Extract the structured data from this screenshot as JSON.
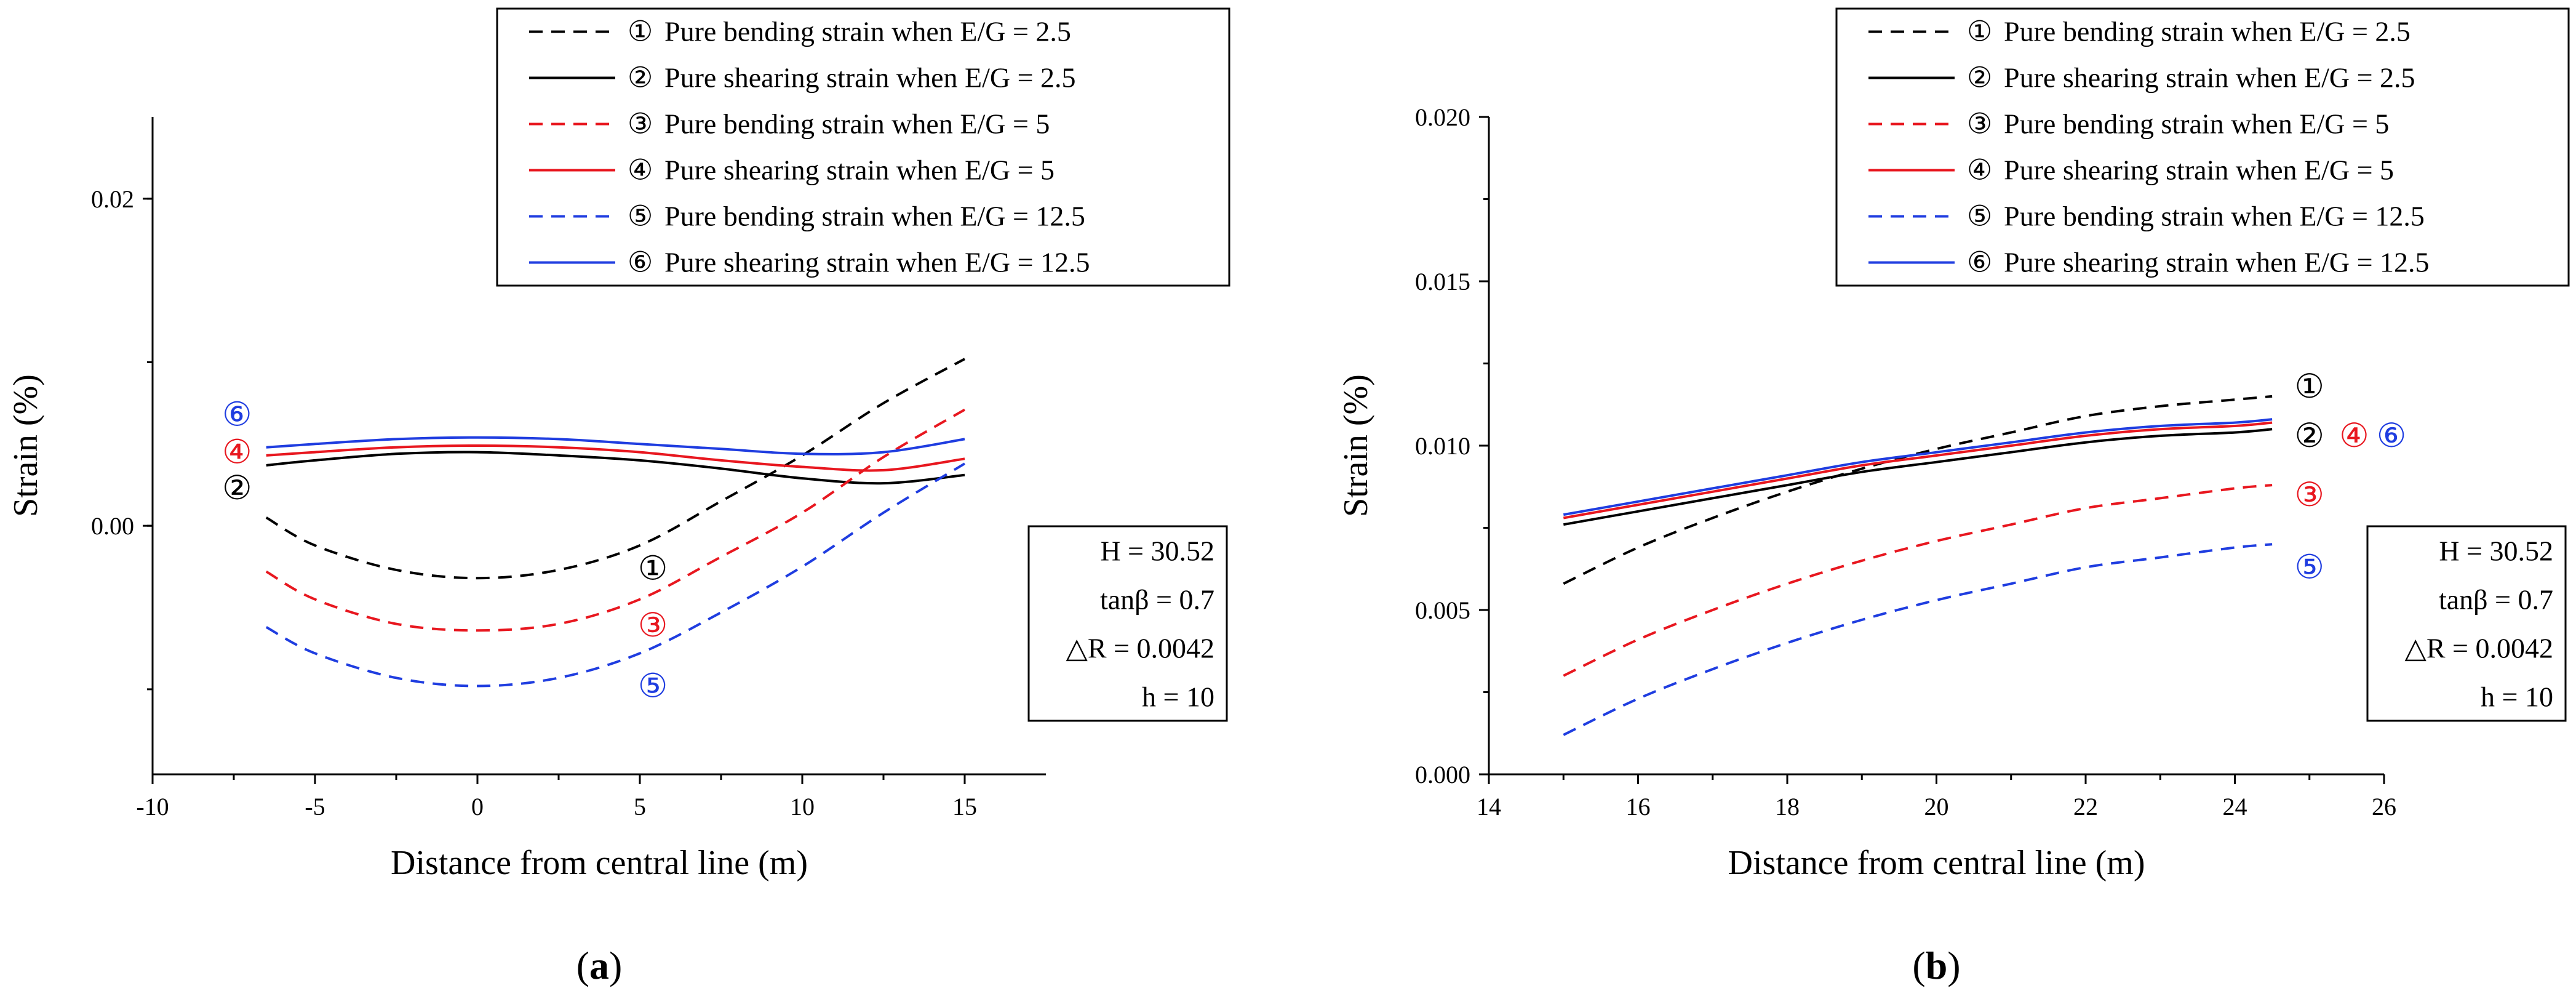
{
  "panels": [
    {
      "id": "a",
      "caption_letter": "a",
      "chart_data": {
        "type": "line",
        "xlabel": "Distance from central line (m)",
        "ylabel": "Strain (%)",
        "xlim": [
          -10,
          17.5
        ],
        "ylim": [
          -0.0152,
          0.025
        ],
        "xticks": [
          -10,
          -5,
          0,
          5,
          10,
          15
        ],
        "xtick_labels": [
          "-10",
          "-5",
          "0",
          "5",
          "10",
          "15"
        ],
        "yticks": [
          0.0,
          0.02
        ],
        "ytick_labels": [
          "0.00",
          "0.02"
        ],
        "series": [
          {
            "name": "Pure bending strain when E/G = 2.5",
            "marker": "①",
            "color": "#000000",
            "dash": true,
            "x": [
              -6.5,
              -5,
              -2.5,
              0,
              2.5,
              5,
              7.5,
              10,
              12.5,
              15
            ],
            "y": [
              0.0005,
              -0.0012,
              -0.0027,
              -0.0032,
              -0.0027,
              -0.0012,
              0.0015,
              0.0043,
              0.0075,
              0.0102
            ]
          },
          {
            "name": "Pure shearing strain when E/G = 2.5",
            "marker": "②",
            "color": "#000000",
            "dash": false,
            "x": [
              -6.5,
              -5,
              -2.5,
              0,
              2.5,
              5,
              7.5,
              10,
              12.5,
              15
            ],
            "y": [
              0.0037,
              0.004,
              0.0044,
              0.0045,
              0.0043,
              0.004,
              0.0035,
              0.0029,
              0.0026,
              0.0031
            ]
          },
          {
            "name": "Pure bending strain when E/G = 5",
            "marker": "③",
            "color": "#e8171f",
            "dash": true,
            "x": [
              -6.5,
              -5,
              -2.5,
              0,
              2.5,
              5,
              7.5,
              10,
              12.5,
              15
            ],
            "y": [
              -0.0028,
              -0.0045,
              -0.006,
              -0.0064,
              -0.006,
              -0.0045,
              -0.0019,
              0.0008,
              0.0042,
              0.0071
            ]
          },
          {
            "name": "Pure shearing strain when E/G = 5",
            "marker": "④",
            "color": "#e8171f",
            "dash": false,
            "x": [
              -6.5,
              -5,
              -2.5,
              0,
              2.5,
              5,
              7.5,
              10,
              12.5,
              15
            ],
            "y": [
              0.0043,
              0.0045,
              0.0048,
              0.0049,
              0.0048,
              0.0045,
              0.004,
              0.0036,
              0.0034,
              0.0041
            ]
          },
          {
            "name": "Pure bending strain when E/G = 12.5",
            "marker": "⑤",
            "color": "#1f3de0",
            "dash": true,
            "x": [
              -6.5,
              -5,
              -2.5,
              0,
              2.5,
              5,
              7.5,
              10,
              12.5,
              15
            ],
            "y": [
              -0.0062,
              -0.0078,
              -0.0093,
              -0.0098,
              -0.0093,
              -0.0078,
              -0.0053,
              -0.0025,
              0.0008,
              0.0038
            ]
          },
          {
            "name": "Pure shearing strain when E/G = 12.5",
            "marker": "⑥",
            "color": "#1f3de0",
            "dash": false,
            "x": [
              -6.5,
              -5,
              -2.5,
              0,
              2.5,
              5,
              7.5,
              10,
              12.5,
              15
            ],
            "y": [
              0.0048,
              0.005,
              0.0053,
              0.0054,
              0.0053,
              0.005,
              0.0047,
              0.0044,
              0.0045,
              0.0053
            ]
          }
        ],
        "annotations": [
          {
            "text": "①",
            "color": "#000000",
            "x": 5.4,
            "y": -0.0026
          },
          {
            "text": "②",
            "color": "#000000",
            "x": -7.4,
            "y": 0.0023
          },
          {
            "text": "③",
            "color": "#e8171f",
            "x": 5.4,
            "y": -0.0061
          },
          {
            "text": "④",
            "color": "#e8171f",
            "x": -7.4,
            "y": 0.0045
          },
          {
            "text": "⑤",
            "color": "#1f3de0",
            "x": 5.4,
            "y": -0.0098
          },
          {
            "text": "⑥",
            "color": "#1f3de0",
            "x": -7.4,
            "y": 0.0068
          }
        ]
      },
      "params": [
        "H = 30.52",
        "tanβ = 0.7",
        "△R = 0.0042",
        "h = 10"
      ]
    },
    {
      "id": "b",
      "caption_letter": "b",
      "chart_data": {
        "type": "line",
        "xlabel": "Distance from central line (m)",
        "ylabel": "Strain (%)",
        "xlim": [
          14,
          26
        ],
        "ylim": [
          0.0,
          0.02
        ],
        "xticks": [
          14,
          16,
          18,
          20,
          22,
          24,
          26
        ],
        "xtick_labels": [
          "14",
          "16",
          "18",
          "20",
          "22",
          "24",
          "26"
        ],
        "yticks": [
          0.0,
          0.005,
          0.01,
          0.015,
          0.02
        ],
        "ytick_labels": [
          "0.000",
          "0.005",
          "0.010",
          "0.015",
          "0.020"
        ],
        "series": [
          {
            "name": "Pure bending strain when E/G = 2.5",
            "marker": "①",
            "color": "#000000",
            "dash": true,
            "x": [
              15,
              16,
              17,
              18,
              19,
              20,
              21,
              22,
              23,
              24,
              24.5
            ],
            "y": [
              0.0058,
              0.0069,
              0.0078,
              0.0086,
              0.0093,
              0.0099,
              0.0104,
              0.0109,
              0.0112,
              0.0114,
              0.0115
            ]
          },
          {
            "name": "Pure shearing strain when E/G = 2.5",
            "marker": "②",
            "color": "#000000",
            "dash": false,
            "x": [
              15,
              16,
              17,
              18,
              19,
              20,
              21,
              22,
              23,
              24,
              24.5
            ],
            "y": [
              0.0076,
              0.008,
              0.0084,
              0.0088,
              0.0092,
              0.0095,
              0.0098,
              0.0101,
              0.0103,
              0.0104,
              0.0105
            ]
          },
          {
            "name": "Pure bending strain when E/G = 5",
            "marker": "③",
            "color": "#e8171f",
            "dash": true,
            "x": [
              15,
              16,
              17,
              18,
              19,
              20,
              21,
              22,
              23,
              24,
              24.5
            ],
            "y": [
              0.003,
              0.0041,
              0.005,
              0.0058,
              0.0065,
              0.0071,
              0.0076,
              0.0081,
              0.0084,
              0.0087,
              0.0088
            ]
          },
          {
            "name": "Pure shearing strain when E/G = 5",
            "marker": "④",
            "color": "#e8171f",
            "dash": false,
            "x": [
              15,
              16,
              17,
              18,
              19,
              20,
              21,
              22,
              23,
              24,
              24.5
            ],
            "y": [
              0.0078,
              0.0082,
              0.0086,
              0.009,
              0.0094,
              0.0097,
              0.01,
              0.0103,
              0.0105,
              0.0106,
              0.0107
            ]
          },
          {
            "name": "Pure bending strain when E/G = 12.5",
            "marker": "⑤",
            "color": "#1f3de0",
            "dash": true,
            "x": [
              15,
              16,
              17,
              18,
              19,
              20,
              21,
              22,
              23,
              24,
              24.5
            ],
            "y": [
              0.0012,
              0.0023,
              0.0032,
              0.004,
              0.0047,
              0.0053,
              0.0058,
              0.0063,
              0.0066,
              0.0069,
              0.007
            ]
          },
          {
            "name": "Pure shearing strain when E/G = 12.5",
            "marker": "⑥",
            "color": "#1f3de0",
            "dash": false,
            "x": [
              15,
              16,
              17,
              18,
              19,
              20,
              21,
              22,
              23,
              24,
              24.5
            ],
            "y": [
              0.0079,
              0.0083,
              0.0087,
              0.0091,
              0.0095,
              0.0098,
              0.0101,
              0.0104,
              0.0106,
              0.0107,
              0.0108
            ]
          }
        ],
        "annotations": [
          {
            "text": "①",
            "color": "#000000",
            "x": 25.0,
            "y": 0.0118
          },
          {
            "text": "②",
            "color": "#000000",
            "x": 25.0,
            "y": 0.0103
          },
          {
            "text": "④",
            "color": "#e8171f",
            "x": 25.6,
            "y": 0.0103
          },
          {
            "text": "⑥",
            "color": "#1f3de0",
            "x": 26.1,
            "y": 0.0103
          },
          {
            "text": "③",
            "color": "#e8171f",
            "x": 25.0,
            "y": 0.0085
          },
          {
            "text": "⑤",
            "color": "#1f3de0",
            "x": 25.0,
            "y": 0.0063
          }
        ]
      },
      "params": [
        "H = 30.52",
        "tanβ = 0.7",
        "△R = 0.0042",
        "h = 10"
      ]
    }
  ]
}
